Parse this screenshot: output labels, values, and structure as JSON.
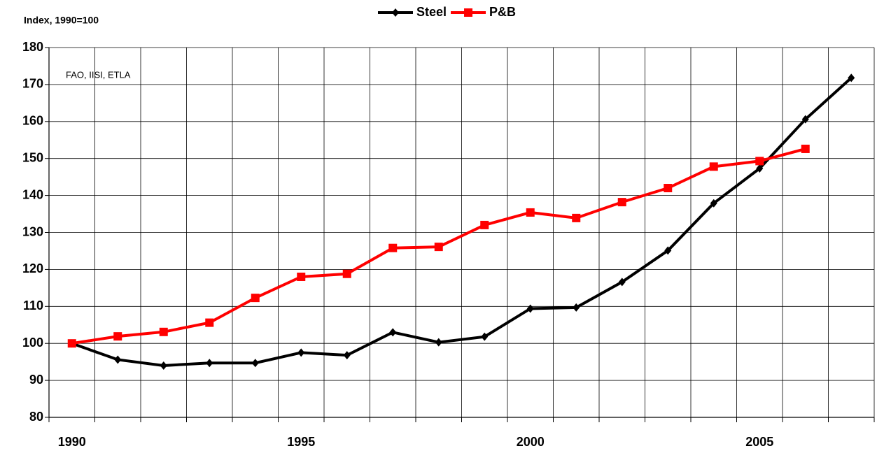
{
  "chart_data": {
    "type": "line",
    "y_label": "Index, 1990=100",
    "annotation": "FAO, IISI, ETLA",
    "categories": [
      "1990",
      null,
      null,
      null,
      null,
      "1995",
      null,
      null,
      null,
      null,
      "2000",
      null,
      null,
      null,
      null,
      "2005",
      null,
      null
    ],
    "series": [
      {
        "name": "Steel",
        "color": "#000000",
        "marker": "diamond",
        "values": [
          100,
          95.6,
          94,
          94.7,
          94.7,
          97.5,
          96.8,
          103,
          100.3,
          101.8,
          109.4,
          109.7,
          116.6,
          125.1,
          137.9,
          147.3,
          160.6,
          171.8
        ]
      },
      {
        "name": "P&B",
        "color": "#ff0000",
        "marker": "square",
        "values": [
          100,
          101.9,
          103.1,
          105.6,
          112.3,
          118,
          118.8,
          125.8,
          126.1,
          132,
          135.4,
          133.9,
          138.2,
          142,
          147.8,
          149.3,
          152.6,
          null
        ]
      }
    ],
    "ylim": [
      80,
      180
    ],
    "yticks": [
      80,
      90,
      100,
      110,
      120,
      130,
      140,
      150,
      160,
      170,
      180
    ],
    "grid": true,
    "legend": "top"
  }
}
